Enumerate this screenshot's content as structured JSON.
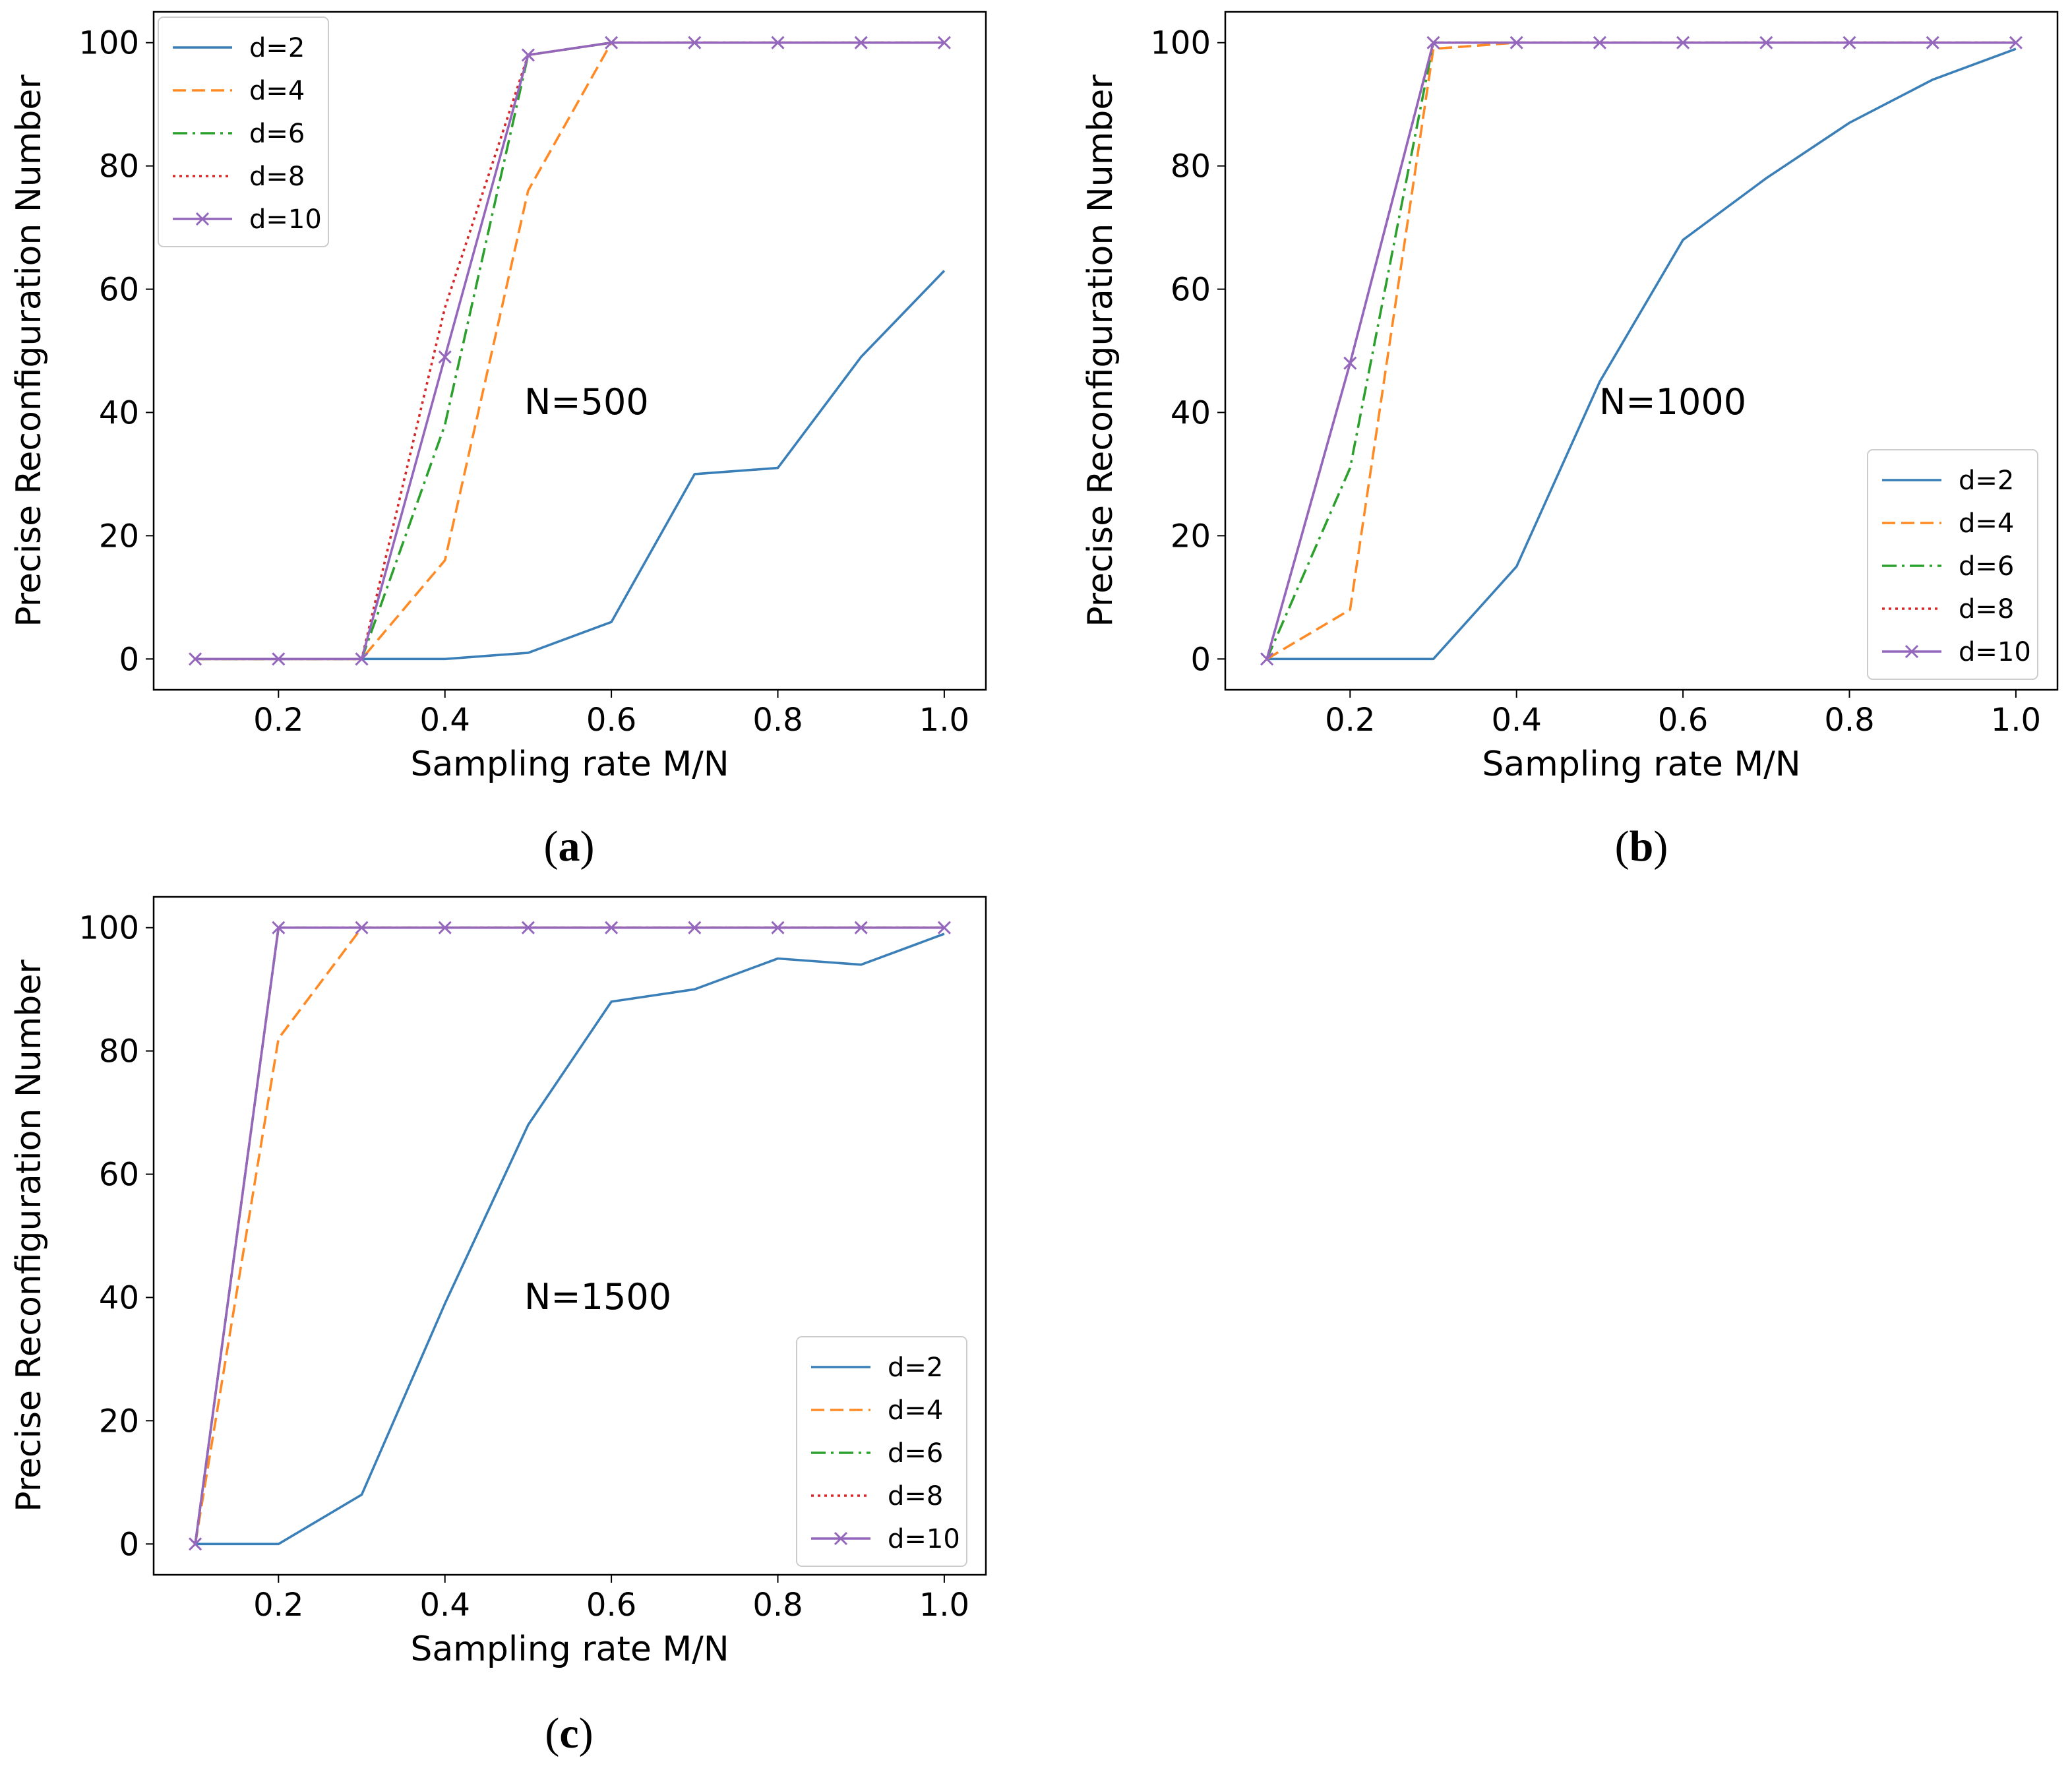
{
  "chart_data": [
    {
      "type": "line",
      "panel": "a",
      "annotation": "N=500",
      "xlabel": "Sampling rate M/N",
      "ylabel": "Precise Reconfiguration Number",
      "xlim": [
        0.05,
        1.05
      ],
      "ylim": [
        -5,
        105
      ],
      "xticks": [
        "0.2",
        "0.4",
        "0.6",
        "0.8",
        "1.0"
      ],
      "yticks": [
        "0",
        "20",
        "40",
        "60",
        "80",
        "100"
      ],
      "legend_position": "top-left",
      "x": [
        0.1,
        0.2,
        0.3,
        0.4,
        0.5,
        0.6,
        0.7,
        0.8,
        0.9,
        1.0
      ],
      "series": [
        {
          "name": "d=2",
          "values": [
            0,
            0,
            0,
            0,
            1,
            6,
            30,
            31,
            49,
            63
          ]
        },
        {
          "name": "d=4",
          "values": [
            0,
            0,
            0,
            16,
            76,
            100,
            100,
            100,
            100,
            100
          ]
        },
        {
          "name": "d=6",
          "values": [
            0,
            0,
            0,
            38,
            98,
            100,
            100,
            100,
            100,
            100
          ]
        },
        {
          "name": "d=8",
          "values": [
            0,
            0,
            0,
            57,
            98,
            100,
            100,
            100,
            100,
            100
          ]
        },
        {
          "name": "d=10",
          "values": [
            0,
            0,
            0,
            49,
            98,
            100,
            100,
            100,
            100,
            100
          ]
        }
      ]
    },
    {
      "type": "line",
      "panel": "b",
      "annotation": "N=1000",
      "xlabel": "Sampling rate M/N",
      "ylabel": "Precise Reconfiguration Number",
      "xlim": [
        0.05,
        1.05
      ],
      "ylim": [
        -5,
        105
      ],
      "xticks": [
        "0.2",
        "0.4",
        "0.6",
        "0.8",
        "1.0"
      ],
      "yticks": [
        "0",
        "20",
        "40",
        "60",
        "80",
        "100"
      ],
      "legend_position": "bottom-right",
      "x": [
        0.1,
        0.2,
        0.3,
        0.4,
        0.5,
        0.6,
        0.7,
        0.8,
        0.9,
        1.0
      ],
      "series": [
        {
          "name": "d=2",
          "values": [
            0,
            0,
            0,
            15,
            45,
            68,
            78,
            87,
            94,
            99
          ]
        },
        {
          "name": "d=4",
          "values": [
            0,
            8,
            99,
            100,
            100,
            100,
            100,
            100,
            100,
            100
          ]
        },
        {
          "name": "d=6",
          "values": [
            0,
            31,
            100,
            100,
            100,
            100,
            100,
            100,
            100,
            100
          ]
        },
        {
          "name": "d=8",
          "values": [
            0,
            48,
            100,
            100,
            100,
            100,
            100,
            100,
            100,
            100
          ]
        },
        {
          "name": "d=10",
          "values": [
            0,
            48,
            100,
            100,
            100,
            100,
            100,
            100,
            100,
            100
          ]
        }
      ]
    },
    {
      "type": "line",
      "panel": "c",
      "annotation": "N=1500",
      "xlabel": "Sampling rate M/N",
      "ylabel": "Precise Reconfiguration Number",
      "xlim": [
        0.05,
        1.05
      ],
      "ylim": [
        -5,
        105
      ],
      "xticks": [
        "0.2",
        "0.4",
        "0.6",
        "0.8",
        "1.0"
      ],
      "yticks": [
        "0",
        "20",
        "40",
        "60",
        "80",
        "100"
      ],
      "legend_position": "bottom-right",
      "x": [
        0.1,
        0.2,
        0.3,
        0.4,
        0.5,
        0.6,
        0.7,
        0.8,
        0.9,
        1.0
      ],
      "series": [
        {
          "name": "d=2",
          "values": [
            0,
            0,
            8,
            39,
            68,
            88,
            90,
            95,
            94,
            99
          ]
        },
        {
          "name": "d=4",
          "values": [
            0,
            82,
            100,
            100,
            100,
            100,
            100,
            100,
            100,
            100
          ]
        },
        {
          "name": "d=6",
          "values": [
            0,
            100,
            100,
            100,
            100,
            100,
            100,
            100,
            100,
            100
          ]
        },
        {
          "name": "d=8",
          "values": [
            0,
            100,
            100,
            100,
            100,
            100,
            100,
            100,
            100,
            100
          ]
        },
        {
          "name": "d=10",
          "values": [
            0,
            100,
            100,
            100,
            100,
            100,
            100,
            100,
            100,
            100
          ]
        }
      ]
    }
  ],
  "series_styles": [
    {
      "name": "d=2",
      "color": "#3a7fb8",
      "dash": "none",
      "marker": "none"
    },
    {
      "name": "d=4",
      "color": "#ff8a24",
      "dash": "dashed",
      "marker": "none"
    },
    {
      "name": "d=6",
      "color": "#2ca02c",
      "dash": "dashdot",
      "marker": "none"
    },
    {
      "name": "d=8",
      "color": "#d62728",
      "dash": "dotted",
      "marker": "none"
    },
    {
      "name": "d=10",
      "color": "#9467bd",
      "dash": "none",
      "marker": "x"
    }
  ],
  "panel_labels": [
    {
      "open": "(",
      "letter": "a",
      "close": ")"
    },
    {
      "open": "(",
      "letter": "b",
      "close": ")"
    },
    {
      "open": "(",
      "letter": "c",
      "close": ")"
    }
  ]
}
